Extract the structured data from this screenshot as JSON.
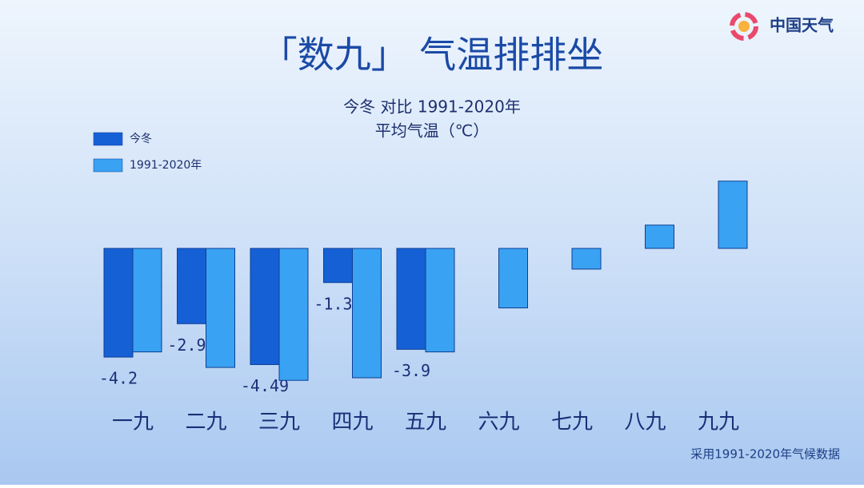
{
  "chart_data": {
    "type": "bar",
    "title": "「数九」 气温排排坐",
    "subtitle": [
      "今冬 对比 1991-2020年",
      "平均气温（℃）"
    ],
    "logo": "中国天气",
    "footnote": "采用1991-2020年气候数据",
    "categories": [
      "一九",
      "二九",
      "三九",
      "四九",
      "五九",
      "六九",
      "七九",
      "八九",
      "九九"
    ],
    "series": [
      {
        "name": "今冬",
        "color": "#1660d6",
        "values": [
          -4.2,
          -2.91,
          -4.49,
          -1.32,
          -3.9,
          null,
          null,
          null,
          null
        ]
      },
      {
        "name": "1991-2020年",
        "color": "#3aa2f2",
        "values": [
          -4.0,
          -4.6,
          -5.1,
          -5.0,
          -4.0,
          -2.3,
          -0.8,
          0.9,
          2.6
        ]
      }
    ],
    "value_labels_series": 0,
    "legend": "top-left"
  }
}
